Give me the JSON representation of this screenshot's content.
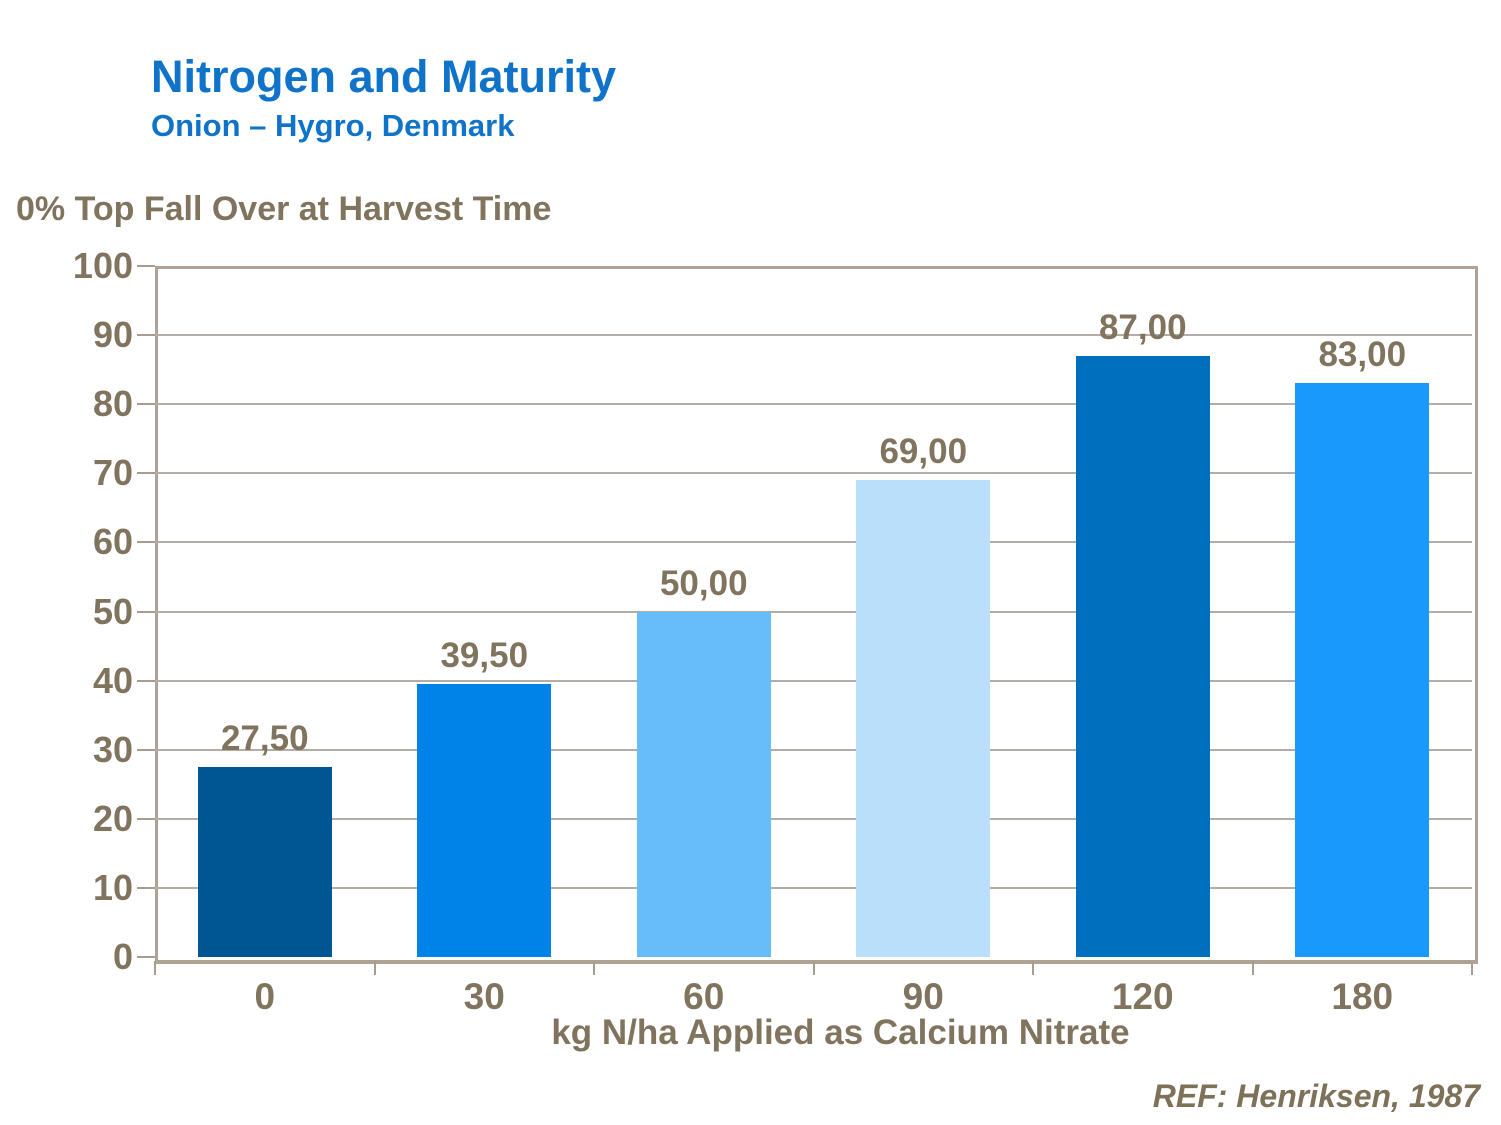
{
  "header": {
    "title": "Nitrogen and Maturity",
    "subtitle": "Onion – Hygro, Denmark"
  },
  "footer": {
    "reference": "REF: Henriksen, 1987"
  },
  "colors": {
    "title_blue": "#0F73C9",
    "axis_text": "#80745E",
    "reference_text": "#7D7158",
    "plot_border": "#ADA293",
    "gridline": "#B3ADA5",
    "tick": "#A79C8D",
    "bar_colors": [
      "#005693",
      "#0083E8",
      "#66BDF9",
      "#B9DFFA",
      "#0070BE",
      "#1899FB"
    ]
  },
  "chart_data": {
    "type": "bar",
    "title": "Nitrogen and Maturity",
    "subtitle": "Onion – Hygro, Denmark",
    "y_axis_title": "0% Top Fall Over at Harvest Time",
    "x_axis_title": "kg N/ha Applied as Calcium Nitrate",
    "categories": [
      "0",
      "30",
      "60",
      "90",
      "120",
      "180"
    ],
    "values": [
      27.5,
      39.5,
      50.0,
      69.0,
      87.0,
      83.0
    ],
    "value_labels": [
      "27,50",
      "39,50",
      "50,00",
      "69,00",
      "87,00",
      "83,00"
    ],
    "ylim": [
      0,
      100
    ],
    "y_tick_step": 10,
    "y_tick_labels": [
      "0",
      "10",
      "20",
      "30",
      "40",
      "50",
      "60",
      "70",
      "80",
      "90",
      "100"
    ],
    "grid": true,
    "legend": false,
    "reference": "REF: Henriksen, 1987"
  }
}
